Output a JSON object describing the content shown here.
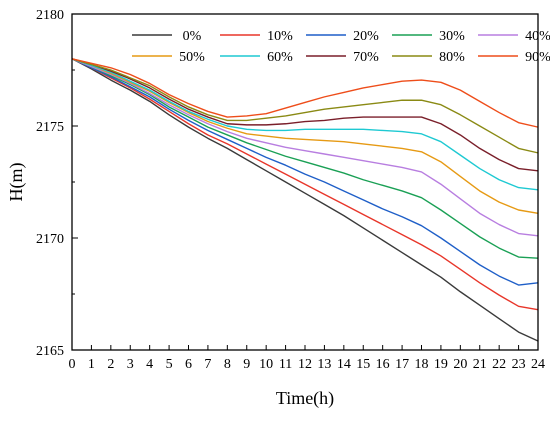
{
  "chart_data": {
    "type": "line",
    "xlabel": "Time(h)",
    "ylabel": "H(m)",
    "xlim": [
      0,
      24
    ],
    "ylim": [
      2165,
      2180
    ],
    "x_ticks": [
      "0",
      "1",
      "2",
      "3",
      "4",
      "5",
      "6",
      "7",
      "8",
      "9",
      "10",
      "11",
      "12",
      "13",
      "14",
      "15",
      "16",
      "17",
      "18",
      "19",
      "20",
      "21",
      "22",
      "23",
      "24"
    ],
    "y_ticks": [
      "2165",
      "2170",
      "2175",
      "2180"
    ],
    "grid": false,
    "legend_position": "top",
    "x": [
      0,
      1,
      2,
      3,
      4,
      5,
      6,
      7,
      8,
      9,
      10,
      11,
      12,
      13,
      14,
      15,
      16,
      17,
      18,
      19,
      20,
      21,
      22,
      23,
      24
    ],
    "series": [
      {
        "name": "0%",
        "color": "#3a3a3a",
        "values": [
          2178.0,
          2177.55,
          2177.05,
          2176.6,
          2176.1,
          2175.5,
          2174.95,
          2174.45,
          2174.0,
          2173.5,
          2173.0,
          2172.5,
          2172.0,
          2171.5,
          2171.0,
          2170.45,
          2169.9,
          2169.35,
          2168.8,
          2168.25,
          2167.6,
          2167.0,
          2166.4,
          2165.8,
          2165.4
        ]
      },
      {
        "name": "10%",
        "color": "#e8362a",
        "values": [
          2178.0,
          2177.6,
          2177.15,
          2176.7,
          2176.2,
          2175.65,
          2175.1,
          2174.6,
          2174.2,
          2173.75,
          2173.3,
          2172.85,
          2172.4,
          2171.95,
          2171.5,
          2171.05,
          2170.6,
          2170.15,
          2169.7,
          2169.2,
          2168.6,
          2168.0,
          2167.45,
          2166.95,
          2166.8
        ]
      },
      {
        "name": "20%",
        "color": "#1f5fc8",
        "values": [
          2178.0,
          2177.6,
          2177.2,
          2176.75,
          2176.3,
          2175.75,
          2175.25,
          2174.8,
          2174.4,
          2174.0,
          2173.6,
          2173.25,
          2172.85,
          2172.5,
          2172.1,
          2171.7,
          2171.3,
          2170.95,
          2170.55,
          2170.0,
          2169.4,
          2168.8,
          2168.3,
          2167.9,
          2168.0
        ]
      },
      {
        "name": "30%",
        "color": "#1aa055",
        "values": [
          2178.0,
          2177.65,
          2177.25,
          2176.85,
          2176.4,
          2175.85,
          2175.4,
          2174.95,
          2174.6,
          2174.25,
          2173.95,
          2173.65,
          2173.4,
          2173.15,
          2172.9,
          2172.6,
          2172.35,
          2172.1,
          2171.8,
          2171.25,
          2170.65,
          2170.05,
          2169.55,
          2169.15,
          2169.1
        ]
      },
      {
        "name": "40%",
        "color": "#b87ee0",
        "values": [
          2178.0,
          2177.65,
          2177.3,
          2176.9,
          2176.45,
          2175.95,
          2175.5,
          2175.1,
          2174.75,
          2174.45,
          2174.25,
          2174.05,
          2173.9,
          2173.75,
          2173.6,
          2173.45,
          2173.3,
          2173.15,
          2172.95,
          2172.4,
          2171.75,
          2171.1,
          2170.6,
          2170.2,
          2170.1
        ]
      },
      {
        "name": "50%",
        "color": "#e69a14",
        "values": [
          2178.0,
          2177.7,
          2177.35,
          2176.95,
          2176.55,
          2176.05,
          2175.6,
          2175.2,
          2174.9,
          2174.65,
          2174.55,
          2174.45,
          2174.4,
          2174.35,
          2174.3,
          2174.2,
          2174.1,
          2174.0,
          2173.85,
          2173.4,
          2172.75,
          2172.1,
          2171.6,
          2171.25,
          2171.1
        ]
      },
      {
        "name": "60%",
        "color": "#1ec9d2",
        "values": [
          2178.0,
          2177.7,
          2177.4,
          2177.0,
          2176.6,
          2176.1,
          2175.65,
          2175.3,
          2175.0,
          2174.85,
          2174.8,
          2174.8,
          2174.85,
          2174.85,
          2174.85,
          2174.85,
          2174.8,
          2174.75,
          2174.65,
          2174.3,
          2173.7,
          2173.1,
          2172.6,
          2172.25,
          2172.15
        ]
      },
      {
        "name": "70%",
        "color": "#7a1f2a",
        "values": [
          2178.0,
          2177.75,
          2177.45,
          2177.1,
          2176.7,
          2176.2,
          2175.75,
          2175.4,
          2175.1,
          2175.05,
          2175.05,
          2175.1,
          2175.2,
          2175.25,
          2175.35,
          2175.4,
          2175.4,
          2175.4,
          2175.4,
          2175.1,
          2174.6,
          2174.0,
          2173.5,
          2173.1,
          2173.0
        ]
      },
      {
        "name": "80%",
        "color": "#8a8a14",
        "values": [
          2178.0,
          2177.75,
          2177.5,
          2177.15,
          2176.8,
          2176.3,
          2175.85,
          2175.5,
          2175.25,
          2175.25,
          2175.35,
          2175.45,
          2175.6,
          2175.75,
          2175.85,
          2175.95,
          2176.05,
          2176.15,
          2176.15,
          2175.95,
          2175.5,
          2175.0,
          2174.5,
          2174.0,
          2173.8
        ]
      },
      {
        "name": "90%",
        "color": "#ee4d1a",
        "values": [
          2178.0,
          2177.8,
          2177.6,
          2177.3,
          2176.9,
          2176.4,
          2176.0,
          2175.65,
          2175.4,
          2175.45,
          2175.55,
          2175.8,
          2176.05,
          2176.3,
          2176.5,
          2176.7,
          2176.85,
          2177.0,
          2177.05,
          2176.95,
          2176.6,
          2176.1,
          2175.6,
          2175.15,
          2174.95
        ]
      }
    ]
  }
}
